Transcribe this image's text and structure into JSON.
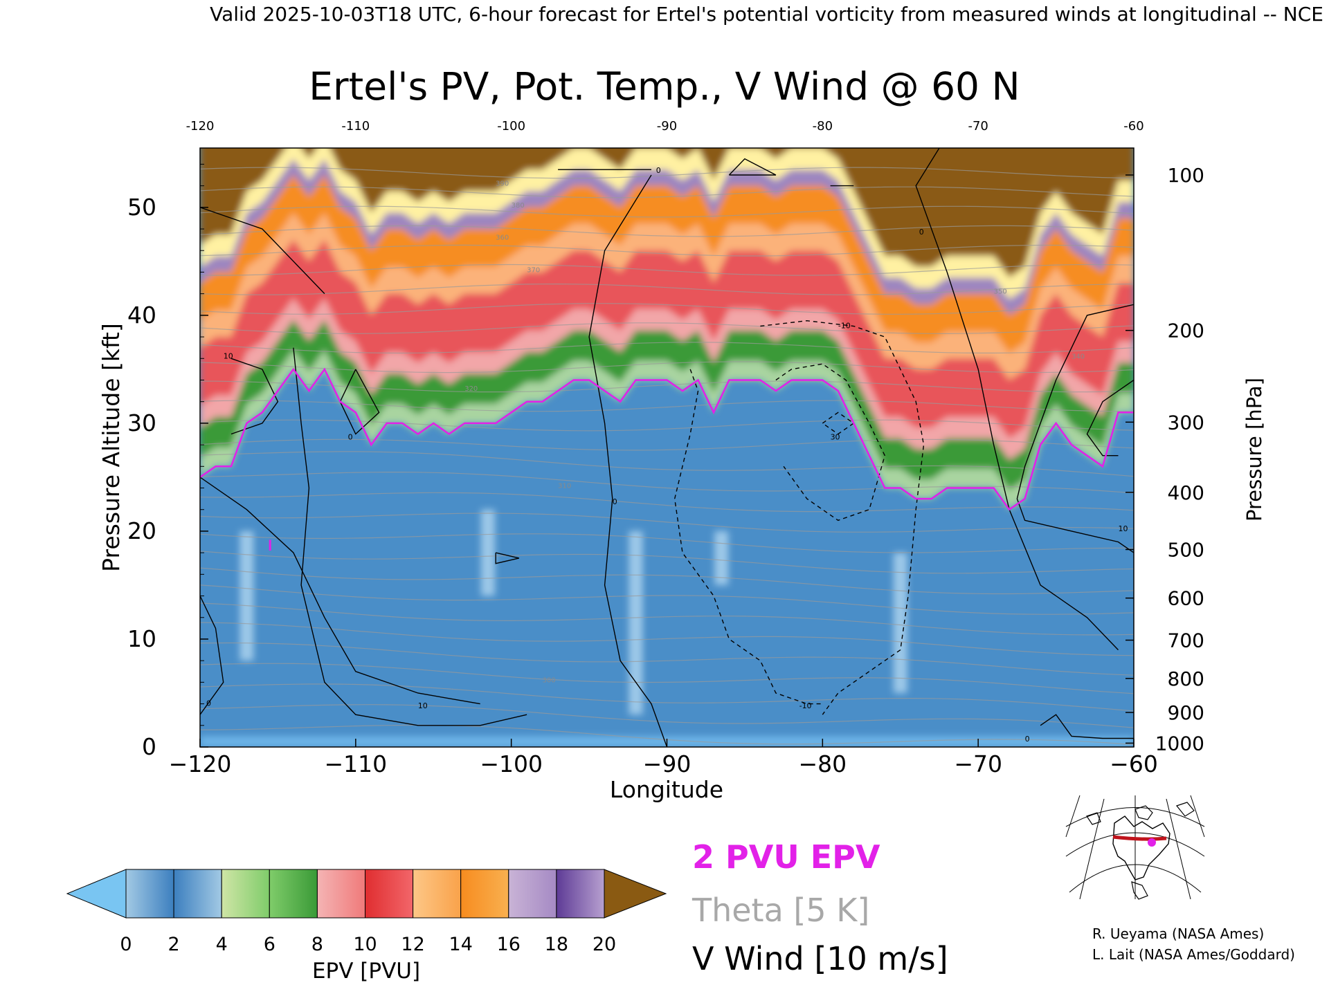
{
  "header_text": "Valid 2025-10-03T18 UTC, 6-hour forecast for Ertel's potential vorticity from measured winds at longitudinal -- NCE",
  "chart_data": {
    "type": "heatmap",
    "title": "Ertel's PV, Pot. Temp., V Wind @ 60 N",
    "xlabel": "Longitude",
    "ylabel": "Pressure Altitude [kft]",
    "y2label": "Pressure [hPa]",
    "xlim": [
      -120,
      -60
    ],
    "ylim": [
      0,
      55.5
    ],
    "x_ticks": [
      -120,
      -110,
      -100,
      -90,
      -80,
      -70,
      -60
    ],
    "x_tick_labels": [
      "−120",
      "−110",
      "−100",
      "−90",
      "−80",
      "−70",
      "−60"
    ],
    "top_ticks": [
      -120,
      -110,
      -100,
      -90,
      -80,
      -70,
      -60
    ],
    "top_tick_labels": [
      "-120",
      "-110",
      "-100",
      "-90",
      "-80",
      "-70",
      "-60"
    ],
    "y_ticks": [
      0,
      10,
      20,
      30,
      40,
      50
    ],
    "y_tick_labels": [
      "0",
      "10",
      "20",
      "30",
      "40",
      "50"
    ],
    "pressure_ticks": [
      {
        "hpa": 1000,
        "kft": 0.36,
        "label": "1000"
      },
      {
        "hpa": 900,
        "kft": 3.2,
        "label": "900"
      },
      {
        "hpa": 800,
        "kft": 6.35,
        "label": "800"
      },
      {
        "hpa": 700,
        "kft": 9.9,
        "label": "700"
      },
      {
        "hpa": 600,
        "kft": 13.8,
        "label": "600"
      },
      {
        "hpa": 500,
        "kft": 18.3,
        "label": "500"
      },
      {
        "hpa": 400,
        "kft": 23.6,
        "label": "400"
      },
      {
        "hpa": 300,
        "kft": 30.1,
        "label": "300"
      },
      {
        "hpa": 200,
        "kft": 38.6,
        "label": "200"
      },
      {
        "hpa": 100,
        "kft": 53.0,
        "label": "100"
      }
    ],
    "tropopause_2pvu": {
      "lon": [
        -120,
        -119,
        -118,
        -117,
        -116,
        -115,
        -114,
        -113,
        -112,
        -111,
        -110,
        -109,
        -108,
        -107,
        -106,
        -105,
        -104,
        -103,
        -102,
        -101,
        -100,
        -99,
        -98,
        -97,
        -96,
        -95,
        -94,
        -93,
        -92,
        -91,
        -90,
        -89,
        -88,
        -87,
        -86,
        -85,
        -84,
        -83,
        -82,
        -81,
        -80,
        -79,
        -78,
        -77,
        -76,
        -75,
        -74,
        -73,
        -72,
        -71,
        -70,
        -69,
        -68,
        -67,
        -66,
        -65,
        -64,
        -63,
        -62,
        -61,
        -60
      ],
      "kft": [
        25,
        26,
        26,
        30,
        31,
        33,
        35,
        33,
        35,
        32,
        31,
        28,
        30,
        30,
        29,
        30,
        29,
        30,
        30,
        30,
        31,
        32,
        32,
        33,
        34,
        34,
        33,
        32,
        34,
        34,
        34,
        33,
        34,
        31,
        34,
        34,
        34,
        33,
        34,
        34,
        34,
        33,
        30,
        27,
        24,
        24,
        23,
        23,
        24,
        24,
        24,
        24,
        22,
        23,
        28,
        30,
        28,
        27,
        26,
        31,
        31
      ]
    },
    "pv_levels": [
      0,
      2,
      4,
      6,
      8,
      10,
      12,
      14,
      16,
      18,
      20
    ],
    "pv_colors": [
      "#79c5f2",
      "#a2c9e4",
      "#3c7fbf",
      "#cfe5a6",
      "#7fcc6a",
      "#3a9a37",
      "#f4b4b4",
      "#e02e30",
      "#fdc787",
      "#f78c1f",
      "#c9b3d6",
      "#5e3b96",
      "#fff5a6",
      "#e3c87b",
      "#8a5a12"
    ],
    "colorbar_label": "EPV [PVU]",
    "colorbar_tick_labels": [
      "0",
      "2",
      "4",
      "6",
      "8",
      "10",
      "12",
      "14",
      "16",
      "18",
      "20"
    ],
    "legend": {
      "pvu": "2 PVU EPV",
      "theta": "Theta [5 K]",
      "wind": "V Wind [10 m/s]"
    },
    "contour_labels": {
      "theta": [
        "320",
        "310",
        "300",
        "340",
        "350",
        "360",
        "370",
        "380",
        "390"
      ],
      "wind": [
        "0",
        "10",
        "-10",
        "30"
      ]
    },
    "colors": {
      "pvu_line": "#e221e8",
      "theta_line": "#9a9a9a",
      "wind_line": "#000000"
    }
  },
  "credits": {
    "line1": "R. Ueyama (NASA Ames)",
    "line2": "L. Lait (NASA Ames/Goddard)"
  },
  "inset_map": {
    "icon": "globe-map-icon",
    "track_color": "#c0141c",
    "marker_color": "#e221e8"
  }
}
